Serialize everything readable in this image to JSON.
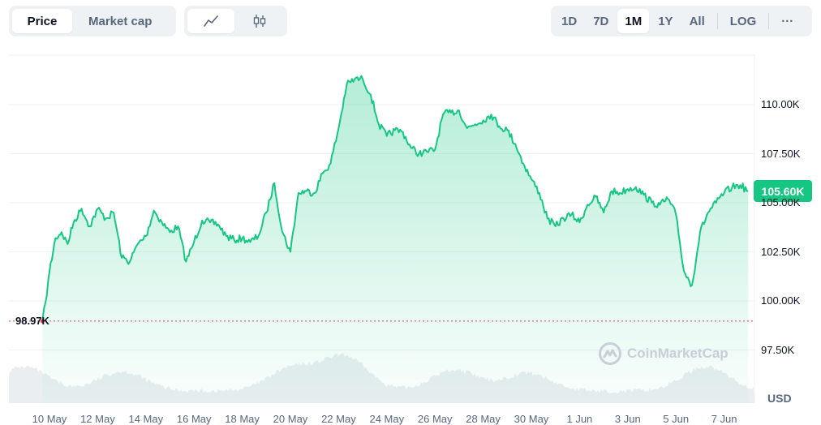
{
  "controls": {
    "type_tabs": [
      {
        "label": "Price",
        "active": true
      },
      {
        "label": "Market cap",
        "active": false
      }
    ],
    "view_icons": [
      {
        "icon": "line-chart-icon",
        "active": true
      },
      {
        "icon": "candlestick-icon",
        "active": false
      }
    ],
    "range_tabs": [
      {
        "label": "1D",
        "active": false
      },
      {
        "label": "7D",
        "active": false
      },
      {
        "label": "1M",
        "active": true
      },
      {
        "label": "1Y",
        "active": false
      },
      {
        "label": "All",
        "active": false
      }
    ],
    "log_label": "LOG",
    "more_label": "···"
  },
  "colors": {
    "line": "#16c784",
    "fill_top": "#16c784",
    "baseline": "#ea3943",
    "volume": "#e8ecf0",
    "grid": "#eff2f5"
  },
  "watermark": "CoinMarketCap",
  "chart_data": {
    "type": "area",
    "x_range": [
      "2025-05-09",
      "2025-06-08"
    ],
    "ylim": [
      96000,
      113800
    ],
    "yticks": [
      {
        "value": 110000,
        "label": "110.00K"
      },
      {
        "value": 107500,
        "label": "107.50K"
      },
      {
        "value": 105000,
        "label": "105.00K"
      },
      {
        "value": 102500,
        "label": "102.50K"
      },
      {
        "value": 100000,
        "label": "100.00K"
      },
      {
        "value": 97500,
        "label": "97.50K"
      }
    ],
    "xticks": [
      {
        "date": "2025-05-10",
        "label": "10 May"
      },
      {
        "date": "2025-05-12",
        "label": "12 May"
      },
      {
        "date": "2025-05-14",
        "label": "14 May"
      },
      {
        "date": "2025-05-16",
        "label": "16 May"
      },
      {
        "date": "2025-05-18",
        "label": "18 May"
      },
      {
        "date": "2025-05-20",
        "label": "20 May"
      },
      {
        "date": "2025-05-22",
        "label": "22 May"
      },
      {
        "date": "2025-05-24",
        "label": "24 May"
      },
      {
        "date": "2025-05-26",
        "label": "26 May"
      },
      {
        "date": "2025-05-28",
        "label": "28 May"
      },
      {
        "date": "2025-05-30",
        "label": "30 May"
      },
      {
        "date": "2025-06-01",
        "label": "1 Jun"
      },
      {
        "date": "2025-06-03",
        "label": "3 Jun"
      },
      {
        "date": "2025-06-05",
        "label": "5 Jun"
      },
      {
        "date": "2025-06-07",
        "label": "7 Jun"
      }
    ],
    "currency_label": "USD",
    "start_value": 98970,
    "start_label": "98.97K",
    "current_value": 105600,
    "current_label": "105.60K",
    "series": [
      {
        "points": [
          [
            "2025-05-09T17:00",
            98970
          ],
          [
            "2025-05-09T20:00",
            99900
          ],
          [
            "2025-05-10T00:00",
            101500
          ],
          [
            "2025-05-10T06:00",
            103200
          ],
          [
            "2025-05-10T12:00",
            103500
          ],
          [
            "2025-05-10T18:00",
            102900
          ],
          [
            "2025-05-11T00:00",
            104000
          ],
          [
            "2025-05-11T08:00",
            104700
          ],
          [
            "2025-05-11T16:00",
            103800
          ],
          [
            "2025-05-12T00:00",
            104700
          ],
          [
            "2025-05-12T08:00",
            104200
          ],
          [
            "2025-05-12T16:00",
            104500
          ],
          [
            "2025-05-13T00:00",
            102200
          ],
          [
            "2025-05-13T08:00",
            102000
          ],
          [
            "2025-05-13T16:00",
            102900
          ],
          [
            "2025-05-14T00:00",
            103300
          ],
          [
            "2025-05-14T08:00",
            104600
          ],
          [
            "2025-05-14T16:00",
            104000
          ],
          [
            "2025-05-15T00:00",
            103500
          ],
          [
            "2025-05-15T08:00",
            103800
          ],
          [
            "2025-05-15T16:00",
            102000
          ],
          [
            "2025-05-16T00:00",
            103000
          ],
          [
            "2025-05-16T08:00",
            104100
          ],
          [
            "2025-05-16T16:00",
            104000
          ],
          [
            "2025-05-17T00:00",
            103900
          ],
          [
            "2025-05-17T08:00",
            103300
          ],
          [
            "2025-05-17T16:00",
            103100
          ],
          [
            "2025-05-18T00:00",
            103200
          ],
          [
            "2025-05-18T08:00",
            103000
          ],
          [
            "2025-05-18T16:00",
            103300
          ],
          [
            "2025-05-19T00:00",
            104500
          ],
          [
            "2025-05-19T08:00",
            106000
          ],
          [
            "2025-05-19T16:00",
            103500
          ],
          [
            "2025-05-20T00:00",
            102500
          ],
          [
            "2025-05-20T08:00",
            105500
          ],
          [
            "2025-05-20T16:00",
            105600
          ],
          [
            "2025-05-21T00:00",
            105500
          ],
          [
            "2025-05-21T08:00",
            106500
          ],
          [
            "2025-05-21T16:00",
            107000
          ],
          [
            "2025-05-22T00:00",
            108800
          ],
          [
            "2025-05-22T08:00",
            111000
          ],
          [
            "2025-05-22T16:00",
            111300
          ],
          [
            "2025-05-23T00:00",
            111300
          ],
          [
            "2025-05-23T08:00",
            110500
          ],
          [
            "2025-05-23T16:00",
            109000
          ],
          [
            "2025-05-24T00:00",
            108400
          ],
          [
            "2025-05-24T08:00",
            108700
          ],
          [
            "2025-05-24T16:00",
            108600
          ],
          [
            "2025-05-25T00:00",
            107800
          ],
          [
            "2025-05-25T08:00",
            107500
          ],
          [
            "2025-05-25T16:00",
            107600
          ],
          [
            "2025-05-26T00:00",
            107700
          ],
          [
            "2025-05-26T08:00",
            109500
          ],
          [
            "2025-05-26T16:00",
            109600
          ],
          [
            "2025-05-27T00:00",
            109700
          ],
          [
            "2025-05-27T08:00",
            108800
          ],
          [
            "2025-05-27T16:00",
            109000
          ],
          [
            "2025-05-28T00:00",
            109200
          ],
          [
            "2025-05-28T08:00",
            109500
          ],
          [
            "2025-05-28T16:00",
            108900
          ],
          [
            "2025-05-29T00:00",
            108700
          ],
          [
            "2025-05-29T08:00",
            108000
          ],
          [
            "2025-05-29T16:00",
            107000
          ],
          [
            "2025-05-30T00:00",
            106200
          ],
          [
            "2025-05-30T08:00",
            105500
          ],
          [
            "2025-05-30T16:00",
            104200
          ],
          [
            "2025-05-31T00:00",
            103800
          ],
          [
            "2025-05-31T08:00",
            104200
          ],
          [
            "2025-05-31T16:00",
            104400
          ],
          [
            "2025-06-01T00:00",
            104000
          ],
          [
            "2025-06-01T08:00",
            104900
          ],
          [
            "2025-06-01T16:00",
            105300
          ],
          [
            "2025-06-02T00:00",
            104500
          ],
          [
            "2025-06-02T08:00",
            105600
          ],
          [
            "2025-06-02T16:00",
            105500
          ],
          [
            "2025-06-03T00:00",
            105700
          ],
          [
            "2025-06-03T08:00",
            105800
          ],
          [
            "2025-06-03T16:00",
            105400
          ],
          [
            "2025-06-04T00:00",
            105000
          ],
          [
            "2025-06-04T08:00",
            104900
          ],
          [
            "2025-06-04T16:00",
            105200
          ],
          [
            "2025-06-05T00:00",
            104400
          ],
          [
            "2025-06-05T08:00",
            101500
          ],
          [
            "2025-06-05T16:00",
            100800
          ],
          [
            "2025-06-06T00:00",
            103500
          ],
          [
            "2025-06-06T08:00",
            104500
          ],
          [
            "2025-06-06T16:00",
            105000
          ],
          [
            "2025-06-07T00:00",
            105500
          ],
          [
            "2025-06-07T08:00",
            105800
          ],
          [
            "2025-06-07T16:00",
            105900
          ],
          [
            "2025-06-08T00:00",
            105600
          ]
        ]
      }
    ]
  }
}
